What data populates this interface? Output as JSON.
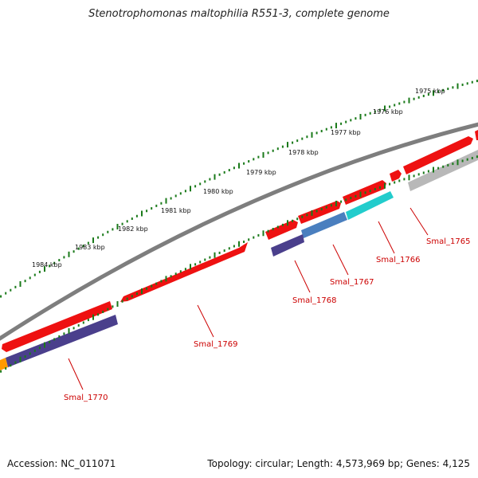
{
  "title": "Stenotrophomonas maltophilia R551-3, complete genome",
  "accession": "Accession: NC_011071",
  "summary": "Topology: circular; Length: 4,573,969 bp; Genes: 4,125",
  "colors": {
    "backbone": "#808080",
    "tick": "#1a7a1a",
    "forward_gene": "#ee1111",
    "gene_label": "#cc0000",
    "purple": "#4a3f8c",
    "steel_blue": "#4a7fbf",
    "cyan": "#22cccc",
    "grey": "#b8b8b8",
    "orange": "#ff9a00"
  },
  "scale_labels": [
    "1975 kbp",
    "1976 kbp",
    "1977 kbp",
    "1978 kbp",
    "1979 kbp",
    "1980 kbp",
    "1981 kbp",
    "1982 kbp",
    "1983 kbp",
    "1984 kbp"
  ],
  "gene_labels": [
    "Smal_1765",
    "Smal_1766",
    "Smal_1767",
    "Smal_1768",
    "Smal_1769",
    "Smal_1770"
  ],
  "forward_features": [
    {
      "color": "#ee1111"
    },
    {
      "color": "#ee1111"
    },
    {
      "color": "#ee1111"
    },
    {
      "color": "#ee1111"
    },
    {
      "color": "#ee1111"
    },
    {
      "color": "#ee1111"
    },
    {
      "color": "#ee1111"
    }
  ],
  "feature_track": [
    {
      "color": "#b8b8b8"
    },
    {
      "color": "#22cccc"
    },
    {
      "color": "#4a7fbf"
    },
    {
      "color": "#4a3f8c"
    },
    {
      "color": "#4a3f8c"
    },
    {
      "color": "#ff9a00"
    }
  ]
}
